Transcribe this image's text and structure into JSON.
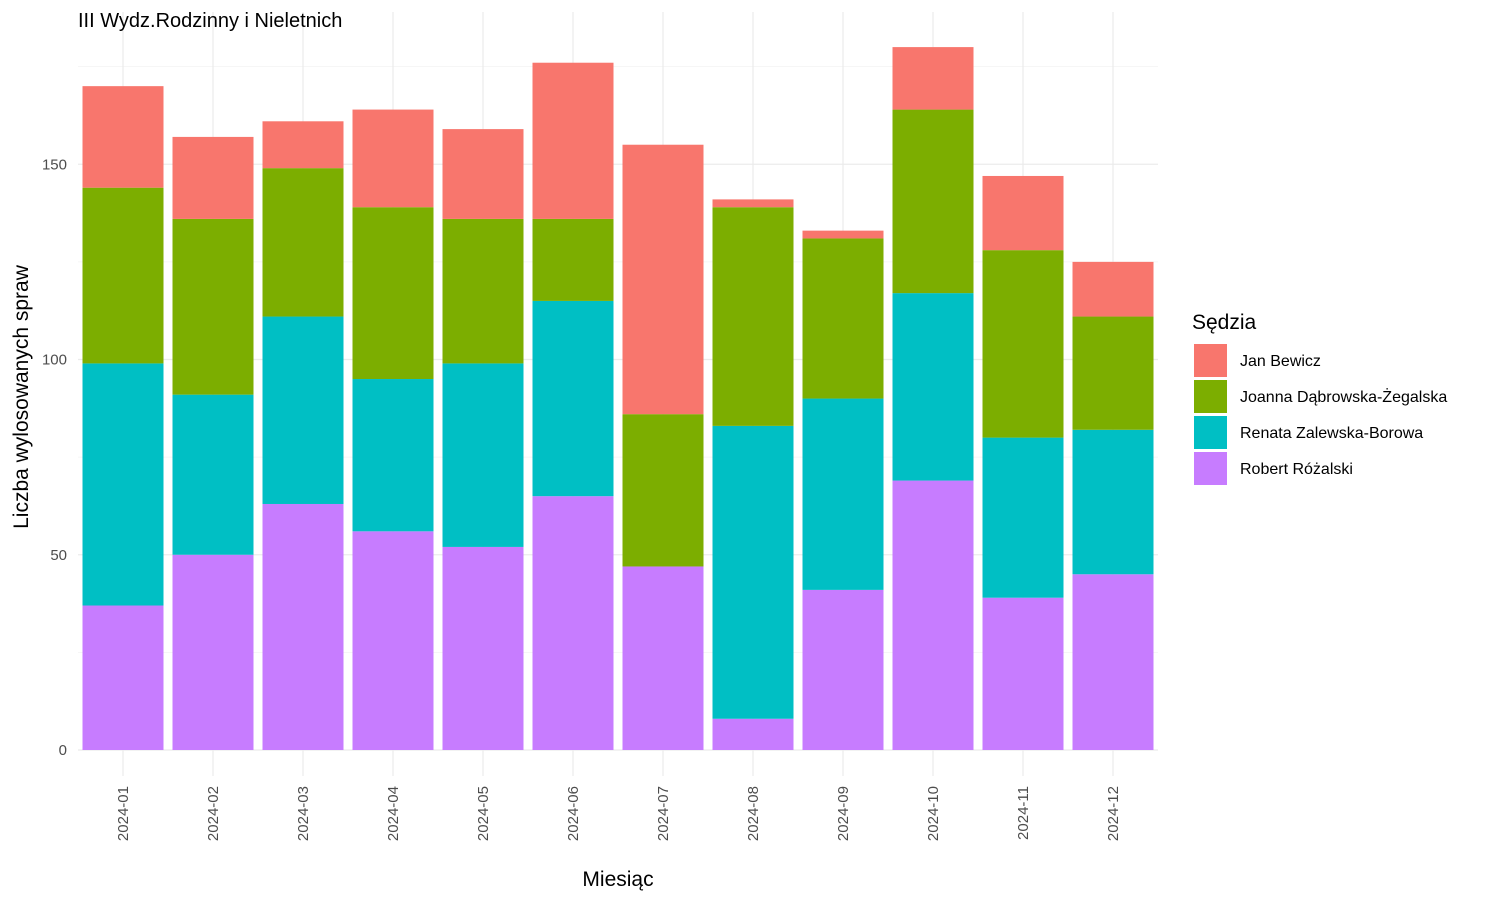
{
  "chart_data": {
    "type": "bar",
    "stacked": true,
    "title": "III Wydz.Rodzinny i Nieletnich",
    "xlabel": "Miesiąc",
    "ylabel": "Liczba wylosowanych spraw",
    "ylim": [
      0,
      180
    ],
    "yticks": [
      0,
      50,
      100,
      150
    ],
    "grid": true,
    "legend": {
      "title": "Sędzia",
      "position": "right"
    },
    "categories": [
      "2024-01",
      "2024-02",
      "2024-03",
      "2024-04",
      "2024-05",
      "2024-06",
      "2024-07",
      "2024-08",
      "2024-09",
      "2024-10",
      "2024-11",
      "2024-12"
    ],
    "series": [
      {
        "name": "Robert Różalski",
        "color": "#C77CFF",
        "values": [
          37,
          50,
          63,
          56,
          52,
          65,
          47,
          8,
          41,
          69,
          39,
          45
        ]
      },
      {
        "name": "Renata Zalewska-Borowa",
        "color": "#00BFC4",
        "values": [
          62,
          41,
          48,
          39,
          47,
          50,
          0,
          75,
          49,
          48,
          41,
          37
        ]
      },
      {
        "name": "Joanna Dąbrowska-Żegalska",
        "color": "#7CAE00",
        "values": [
          45,
          45,
          38,
          44,
          37,
          21,
          39,
          56,
          41,
          47,
          48,
          29
        ]
      },
      {
        "name": "Jan Bewicz",
        "color": "#F8766D",
        "values": [
          26,
          21,
          12,
          25,
          23,
          40,
          69,
          2,
          2,
          16,
          19,
          14
        ]
      }
    ],
    "legend_order": [
      "Jan Bewicz",
      "Joanna Dąbrowska-Żegalska",
      "Renata Zalewska-Borowa",
      "Robert Różalski"
    ]
  }
}
